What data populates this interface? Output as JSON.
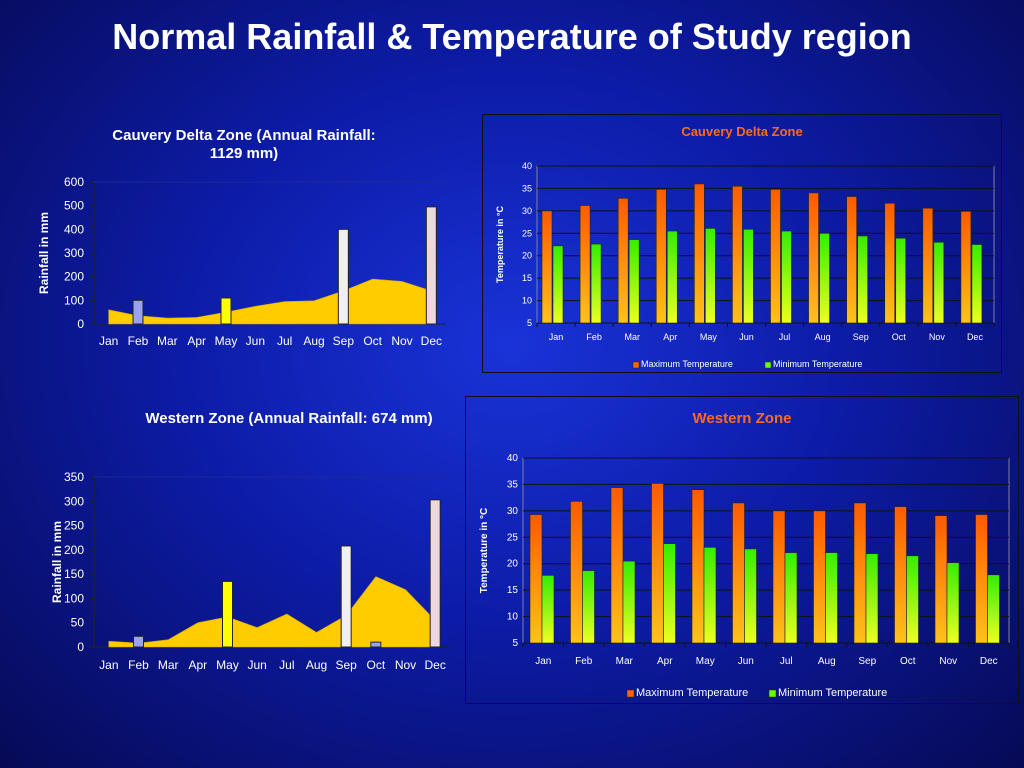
{
  "slide": {
    "title": "Normal Rainfall & Temperature of Study region"
  },
  "colors": {
    "background": "#0d1ca8",
    "area_fill": "#ffcc00",
    "max_temp": "#ff6600",
    "min_temp": "#66ff00",
    "temp_title": "#ff6a1a"
  },
  "chart_data": [
    {
      "id": "cauvery_rainfall",
      "type": "area",
      "title": "Cauvery Delta Zone (Annual Rainfall: 1129 mm)",
      "title_lines": [
        "Cauvery Delta Zone (Annual Rainfall:",
        "1129 mm)"
      ],
      "ylabel": "Rainfall in mm",
      "xlabel": "",
      "ylim": [
        0,
        600
      ],
      "yticks": [
        0,
        100,
        200,
        300,
        400,
        500,
        600
      ],
      "grid": false,
      "categories": [
        "Jan",
        "Feb",
        "Mar",
        "Apr",
        "May",
        "Jun",
        "Jul",
        "Aug",
        "Sep",
        "Oct",
        "Nov",
        "Dec"
      ],
      "values": [
        60,
        35,
        25,
        28,
        50,
        75,
        95,
        98,
        140,
        190,
        180,
        140
      ],
      "highlights": [
        {
          "month": "Feb",
          "value": 100,
          "color": "#9aa3f0"
        },
        {
          "month": "May",
          "value": 110,
          "color": "#ffff00"
        },
        {
          "month": "Sep",
          "value": 400,
          "color": "#f0f0f0"
        },
        {
          "month": "Dec",
          "value": 495,
          "color": "#eed8e0"
        }
      ]
    },
    {
      "id": "cauvery_temperature",
      "type": "bar",
      "title": "Cauvery Delta Zone",
      "ylabel": "Temperature in °C",
      "xlabel": "",
      "ylim": [
        5,
        40
      ],
      "yticks": [
        5,
        10,
        15,
        20,
        25,
        30,
        35,
        40
      ],
      "grid": true,
      "legend": "bottom",
      "categories": [
        "Jan",
        "Feb",
        "Mar",
        "Apr",
        "May",
        "Jun",
        "Jul",
        "Aug",
        "Sep",
        "Oct",
        "Nov",
        "Dec"
      ],
      "series": [
        {
          "name": "Maximum Temperature",
          "values": [
            30,
            31.2,
            32.8,
            34.8,
            36,
            35.5,
            34.8,
            34,
            33.2,
            31.7,
            30.6,
            29.9
          ]
        },
        {
          "name": "Minimum Temperature",
          "values": [
            22.2,
            22.6,
            23.6,
            25.5,
            26.1,
            25.9,
            25.5,
            25,
            24.4,
            23.9,
            23,
            22.5
          ]
        }
      ]
    },
    {
      "id": "western_rainfall",
      "type": "area",
      "title": "Western Zone (Annual Rainfall: 674 mm)",
      "title_lines": [
        "Western Zone (Annual Rainfall: 674 mm)"
      ],
      "ylabel": "Rainfall in mm",
      "xlabel": "",
      "ylim": [
        0,
        350
      ],
      "yticks": [
        0,
        50,
        100,
        150,
        200,
        250,
        300,
        350
      ],
      "grid": false,
      "categories": [
        "Jan",
        "Feb",
        "Mar",
        "Apr",
        "May",
        "Jun",
        "Jul",
        "Aug",
        "Sep",
        "Oct",
        "Nov",
        "Dec"
      ],
      "values": [
        12,
        8,
        15,
        50,
        62,
        40,
        68,
        30,
        65,
        145,
        118,
        55
      ],
      "highlights": [
        {
          "month": "Feb",
          "value": 22,
          "color": "#9aa3f0"
        },
        {
          "month": "May",
          "value": 135,
          "color": "#ffff00"
        },
        {
          "month": "Sep",
          "value": 208,
          "color": "#f0f0f0"
        },
        {
          "month": "Oct",
          "value": 10,
          "color": "#9aa3f0"
        },
        {
          "month": "Dec",
          "value": 303,
          "color": "#eed8e0"
        }
      ]
    },
    {
      "id": "western_temperature",
      "type": "bar",
      "title": "Western Zone",
      "ylabel": "Temperature in °C",
      "xlabel": "",
      "ylim": [
        5,
        40
      ],
      "yticks": [
        5,
        10,
        15,
        20,
        25,
        30,
        35,
        40
      ],
      "grid": true,
      "legend": "bottom",
      "categories": [
        "Jan",
        "Feb",
        "Mar",
        "Apr",
        "May",
        "Jun",
        "Jul",
        "Aug",
        "Sep",
        "Oct",
        "Nov",
        "Dec"
      ],
      "series": [
        {
          "name": "Maximum Temperature",
          "values": [
            29.3,
            31.8,
            34.4,
            35.2,
            34,
            31.5,
            30,
            30,
            31.5,
            30.8,
            29.1,
            29.3
          ]
        },
        {
          "name": "Minimum Temperature",
          "values": [
            17.8,
            18.7,
            20.5,
            23.8,
            23.1,
            22.8,
            22.1,
            22.1,
            21.9,
            21.5,
            20.2,
            17.9
          ]
        }
      ]
    }
  ]
}
